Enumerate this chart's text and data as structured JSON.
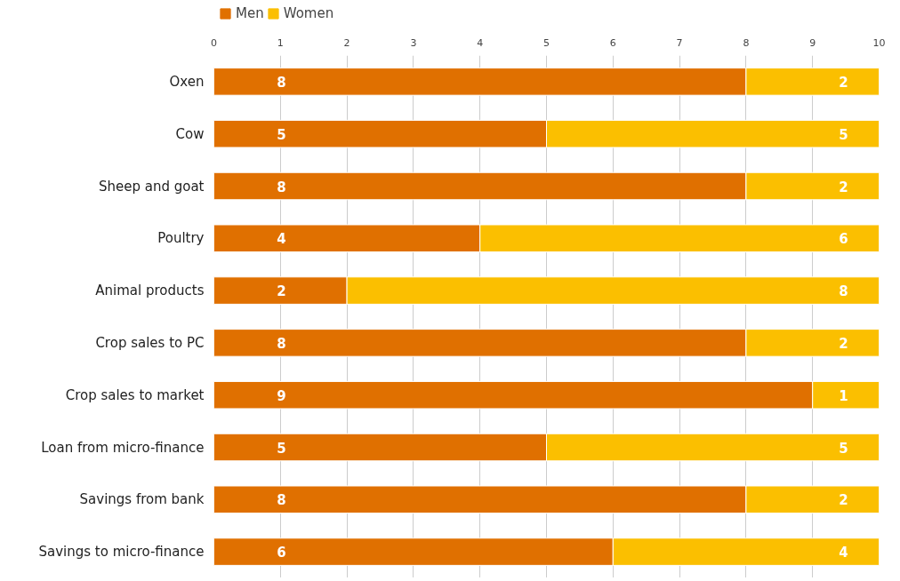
{
  "chart_data": {
    "type": "bar",
    "orientation": "horizontal",
    "stacked": true,
    "data_labels": true,
    "legend": "top left",
    "grid": "x",
    "categories": [
      "Oxen",
      "Cow",
      "Sheep and goat",
      "Poultry",
      "Animal products",
      "Crop sales to PC",
      "Crop sales to market",
      "Loan from micro-finance",
      "Savings from bank",
      "Savings to micro-finance"
    ],
    "series": [
      {
        "name": "Men",
        "color": "#e07000",
        "values": [
          8,
          5,
          8,
          4,
          2,
          8,
          9,
          5,
          8,
          6
        ]
      },
      {
        "name": "Women",
        "color": "#fbbf00",
        "values": [
          2,
          5,
          2,
          6,
          8,
          2,
          1,
          5,
          2,
          4
        ]
      }
    ],
    "xlim": [
      0,
      10
    ],
    "xticks": [
      0,
      1,
      2,
      3,
      4,
      5,
      6,
      7,
      8,
      9,
      10
    ]
  }
}
